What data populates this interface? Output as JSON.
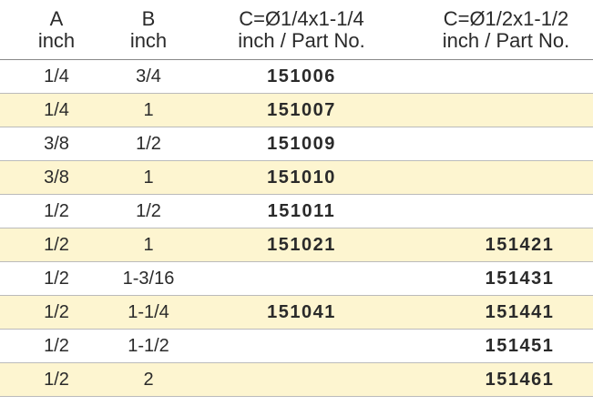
{
  "header": {
    "a": [
      "A",
      "inch"
    ],
    "b": [
      "B",
      "inch"
    ],
    "c": [
      "C=Ø1/4x1-1/4",
      "inch / Part No."
    ],
    "d": [
      "C=Ø1/2x1-1/2",
      "inch / Part No."
    ]
  },
  "row_colors": {
    "even": "#ffffff",
    "odd": "#fdf5d0"
  },
  "rows": [
    {
      "a": "1/4",
      "b": "3/4",
      "c": "151006",
      "d": ""
    },
    {
      "a": "1/4",
      "b": "1",
      "c": "151007",
      "d": ""
    },
    {
      "a": "3/8",
      "b": "1/2",
      "c": "151009",
      "d": ""
    },
    {
      "a": "3/8",
      "b": "1",
      "c": "151010",
      "d": ""
    },
    {
      "a": "1/2",
      "b": "1/2",
      "c": "151011",
      "d": ""
    },
    {
      "a": "1/2",
      "b": "1",
      "c": "151021",
      "d": "151421"
    },
    {
      "a": "1/2",
      "b": "1-3/16",
      "c": "",
      "d": "151431"
    },
    {
      "a": "1/2",
      "b": "1-1/4",
      "c": "151041",
      "d": "151441"
    },
    {
      "a": "1/2",
      "b": "1-1/2",
      "c": "",
      "d": "151451"
    },
    {
      "a": "1/2",
      "b": "2",
      "c": "",
      "d": "151461"
    }
  ]
}
